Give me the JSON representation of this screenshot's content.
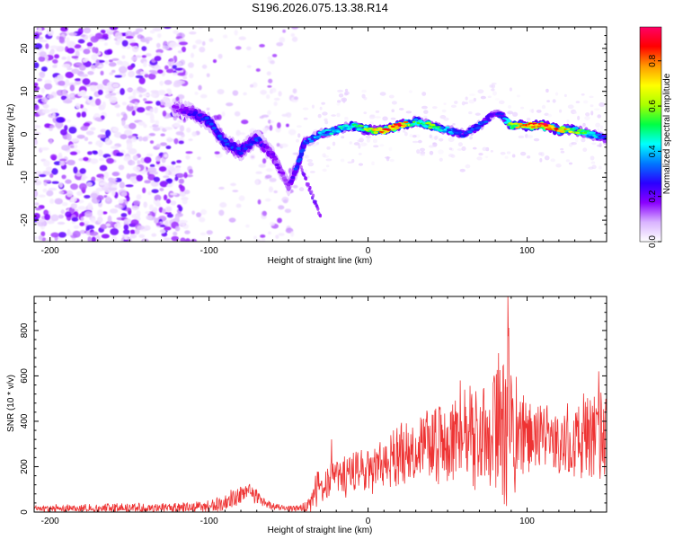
{
  "page": {
    "title": "S196.2026.075.13.38.R14"
  },
  "chart_data": [
    {
      "type": "heatmap",
      "title": "S196.2026.075.13.38.R14",
      "xlabel": "Height of straight line (km)",
      "ylabel": "Frequency (Hz)",
      "xlim": [
        -210,
        150
      ],
      "ylim": [
        -25,
        25
      ],
      "xticks": [
        -200,
        -100,
        0,
        100
      ],
      "yticks": [
        -20,
        -10,
        0,
        10,
        20
      ],
      "grid": false,
      "colorbar": {
        "label": "Normalized spectral amplitude",
        "range": [
          0.0,
          0.95
        ],
        "ticks": [
          0.0,
          0.2,
          0.4,
          0.6,
          0.8
        ],
        "tick_labels": [
          "0.0",
          "0.2",
          "0.4",
          "0.6",
          "0.8"
        ],
        "colors": [
          "#ffffff",
          "#d9b3ff",
          "#8a00ff",
          "#2a00ff",
          "#0077ff",
          "#00ffff",
          "#00ff44",
          "#a8ff00",
          "#ffff00",
          "#ff9900",
          "#ff0000",
          "#ff0066"
        ]
      },
      "ridge": {
        "description": "frequency of dominant signal ridge vs height",
        "x": [
          -120,
          -110,
          -100,
          -90,
          -80,
          -70,
          -60,
          -50,
          -45,
          -40,
          -30,
          -20,
          -10,
          0,
          10,
          20,
          30,
          40,
          50,
          60,
          70,
          80,
          85,
          90,
          100,
          110,
          120,
          130,
          140,
          150
        ],
        "y": [
          6,
          5,
          3,
          -2,
          -4,
          -1,
          -5,
          -12,
          -8,
          -2,
          0,
          1,
          2,
          1,
          1,
          2,
          3,
          2,
          1,
          0,
          2,
          5,
          4,
          2,
          2,
          2,
          1,
          1,
          0,
          -1
        ],
        "peak_amplitude": [
          0.15,
          0.25,
          0.3,
          0.3,
          0.3,
          0.3,
          0.2,
          0.15,
          0.3,
          0.35,
          0.4,
          0.45,
          0.5,
          0.6,
          0.85,
          0.9,
          0.5,
          0.6,
          0.4,
          0.3,
          0.35,
          0.25,
          0.3,
          0.6,
          0.85,
          0.9,
          0.85,
          0.6,
          0.5,
          0.3
        ]
      }
    },
    {
      "type": "line",
      "xlabel": "Height of straight line (km)",
      "ylabel": "SNR (10 * v/v)",
      "xlim": [
        -210,
        150
      ],
      "ylim": [
        0,
        950
      ],
      "xticks": [
        -200,
        -100,
        0,
        100
      ],
      "yticks": [
        0,
        200,
        400,
        600,
        800
      ],
      "grid": false,
      "series": [
        {
          "name": "SNR",
          "color": "#ee3333",
          "envelope_x": [
            -210,
            -180,
            -150,
            -120,
            -100,
            -90,
            -80,
            -75,
            -70,
            -65,
            -60,
            -50,
            -45,
            -40,
            -38,
            -36,
            -34,
            -30,
            -25,
            -20,
            -15,
            -10,
            0,
            10,
            20,
            30,
            40,
            50,
            60,
            70,
            80,
            85,
            88,
            90,
            95,
            100,
            110,
            120,
            130,
            140,
            150
          ],
          "envelope_mean": [
            15,
            15,
            15,
            15,
            25,
            45,
            70,
            90,
            70,
            45,
            25,
            15,
            15,
            20,
            30,
            50,
            80,
            110,
            150,
            160,
            160,
            170,
            180,
            210,
            250,
            280,
            300,
            310,
            320,
            340,
            320,
            330,
            380,
            360,
            330,
            330,
            320,
            300,
            310,
            320,
            330
          ],
          "envelope_max": [
            35,
            35,
            40,
            40,
            55,
            95,
            115,
            130,
            110,
            70,
            45,
            30,
            30,
            45,
            70,
            110,
            150,
            210,
            250,
            260,
            270,
            280,
            310,
            340,
            400,
            430,
            480,
            520,
            560,
            600,
            620,
            700,
            950,
            650,
            580,
            520,
            480,
            460,
            500,
            560,
            580
          ],
          "peaks": [
            {
              "x": -23,
              "y": 320
            },
            {
              "x": 88,
              "y": 950
            },
            {
              "x": 82,
              "y": 700
            },
            {
              "x": 58,
              "y": 580
            },
            {
              "x": 145,
              "y": 620
            }
          ]
        }
      ]
    }
  ]
}
